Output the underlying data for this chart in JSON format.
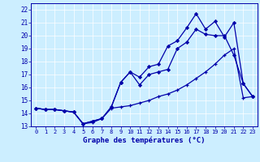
{
  "title": "Graphe des températures (°C)",
  "bg_color": "#cceeff",
  "line_color": "#0000aa",
  "xlim": [
    -0.5,
    23.5
  ],
  "ylim": [
    13,
    22.5
  ],
  "xticks": [
    0,
    1,
    2,
    3,
    4,
    5,
    6,
    7,
    8,
    9,
    10,
    11,
    12,
    13,
    14,
    15,
    16,
    17,
    18,
    19,
    20,
    21,
    22,
    23
  ],
  "yticks": [
    13,
    14,
    15,
    16,
    17,
    18,
    19,
    20,
    21,
    22
  ],
  "line1_smooth": {
    "x": [
      0,
      1,
      2,
      3,
      4,
      5,
      6,
      7,
      8,
      9,
      10,
      11,
      12,
      13,
      14,
      15,
      16,
      17,
      18,
      19,
      20,
      21,
      22,
      23
    ],
    "y": [
      14.4,
      14.3,
      14.3,
      14.2,
      14.1,
      13.2,
      13.3,
      13.6,
      14.4,
      14.5,
      14.6,
      14.8,
      15.0,
      15.3,
      15.5,
      15.8,
      16.2,
      16.7,
      17.2,
      17.8,
      18.5,
      19.0,
      15.2,
      15.3
    ]
  },
  "line2_mid": {
    "x": [
      0,
      1,
      2,
      3,
      4,
      5,
      6,
      7,
      8,
      9,
      10,
      11,
      12,
      13,
      14,
      15,
      16,
      17,
      18,
      19,
      20,
      21,
      22,
      23
    ],
    "y": [
      14.4,
      14.3,
      14.3,
      14.2,
      14.1,
      13.2,
      13.4,
      13.6,
      14.5,
      16.4,
      17.2,
      16.2,
      17.0,
      17.2,
      17.4,
      19.0,
      19.5,
      20.5,
      20.1,
      20.0,
      20.0,
      18.5,
      16.3,
      15.3
    ]
  },
  "line3_top": {
    "x": [
      0,
      1,
      2,
      3,
      4,
      5,
      6,
      7,
      8,
      9,
      10,
      11,
      12,
      13,
      14,
      15,
      16,
      17,
      18,
      19,
      20,
      21,
      22,
      23
    ],
    "y": [
      14.4,
      14.3,
      14.3,
      14.2,
      14.1,
      13.2,
      13.4,
      13.6,
      14.5,
      16.4,
      17.2,
      16.8,
      17.6,
      17.8,
      19.2,
      19.6,
      20.6,
      21.7,
      20.5,
      21.1,
      19.9,
      21.0,
      16.3,
      15.3
    ]
  }
}
